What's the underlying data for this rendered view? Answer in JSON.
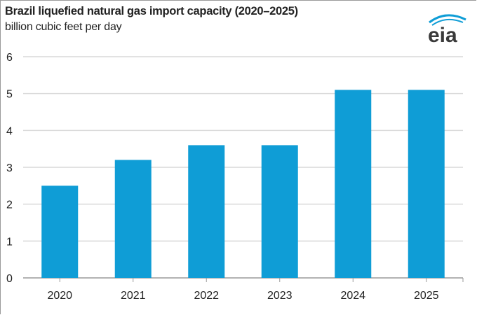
{
  "chart_data": {
    "type": "bar",
    "title": "Brazil liquefied natural gas import capacity (2020–2025)",
    "subtitle": "billion cubic feet per day",
    "categories": [
      "2020",
      "2021",
      "2022",
      "2023",
      "2024",
      "2025"
    ],
    "values": [
      2.5,
      3.2,
      3.6,
      3.6,
      5.1,
      5.1
    ],
    "ylim": [
      0,
      6
    ],
    "yticks": [
      0,
      1,
      2,
      3,
      4,
      5,
      6
    ],
    "grid": true,
    "bar_color": "#0f9dd6",
    "xlabel": "",
    "ylabel": ""
  },
  "logo": {
    "text": "eia",
    "text_color": "#3a3a3a",
    "accent_color": "#0f9dd6"
  }
}
